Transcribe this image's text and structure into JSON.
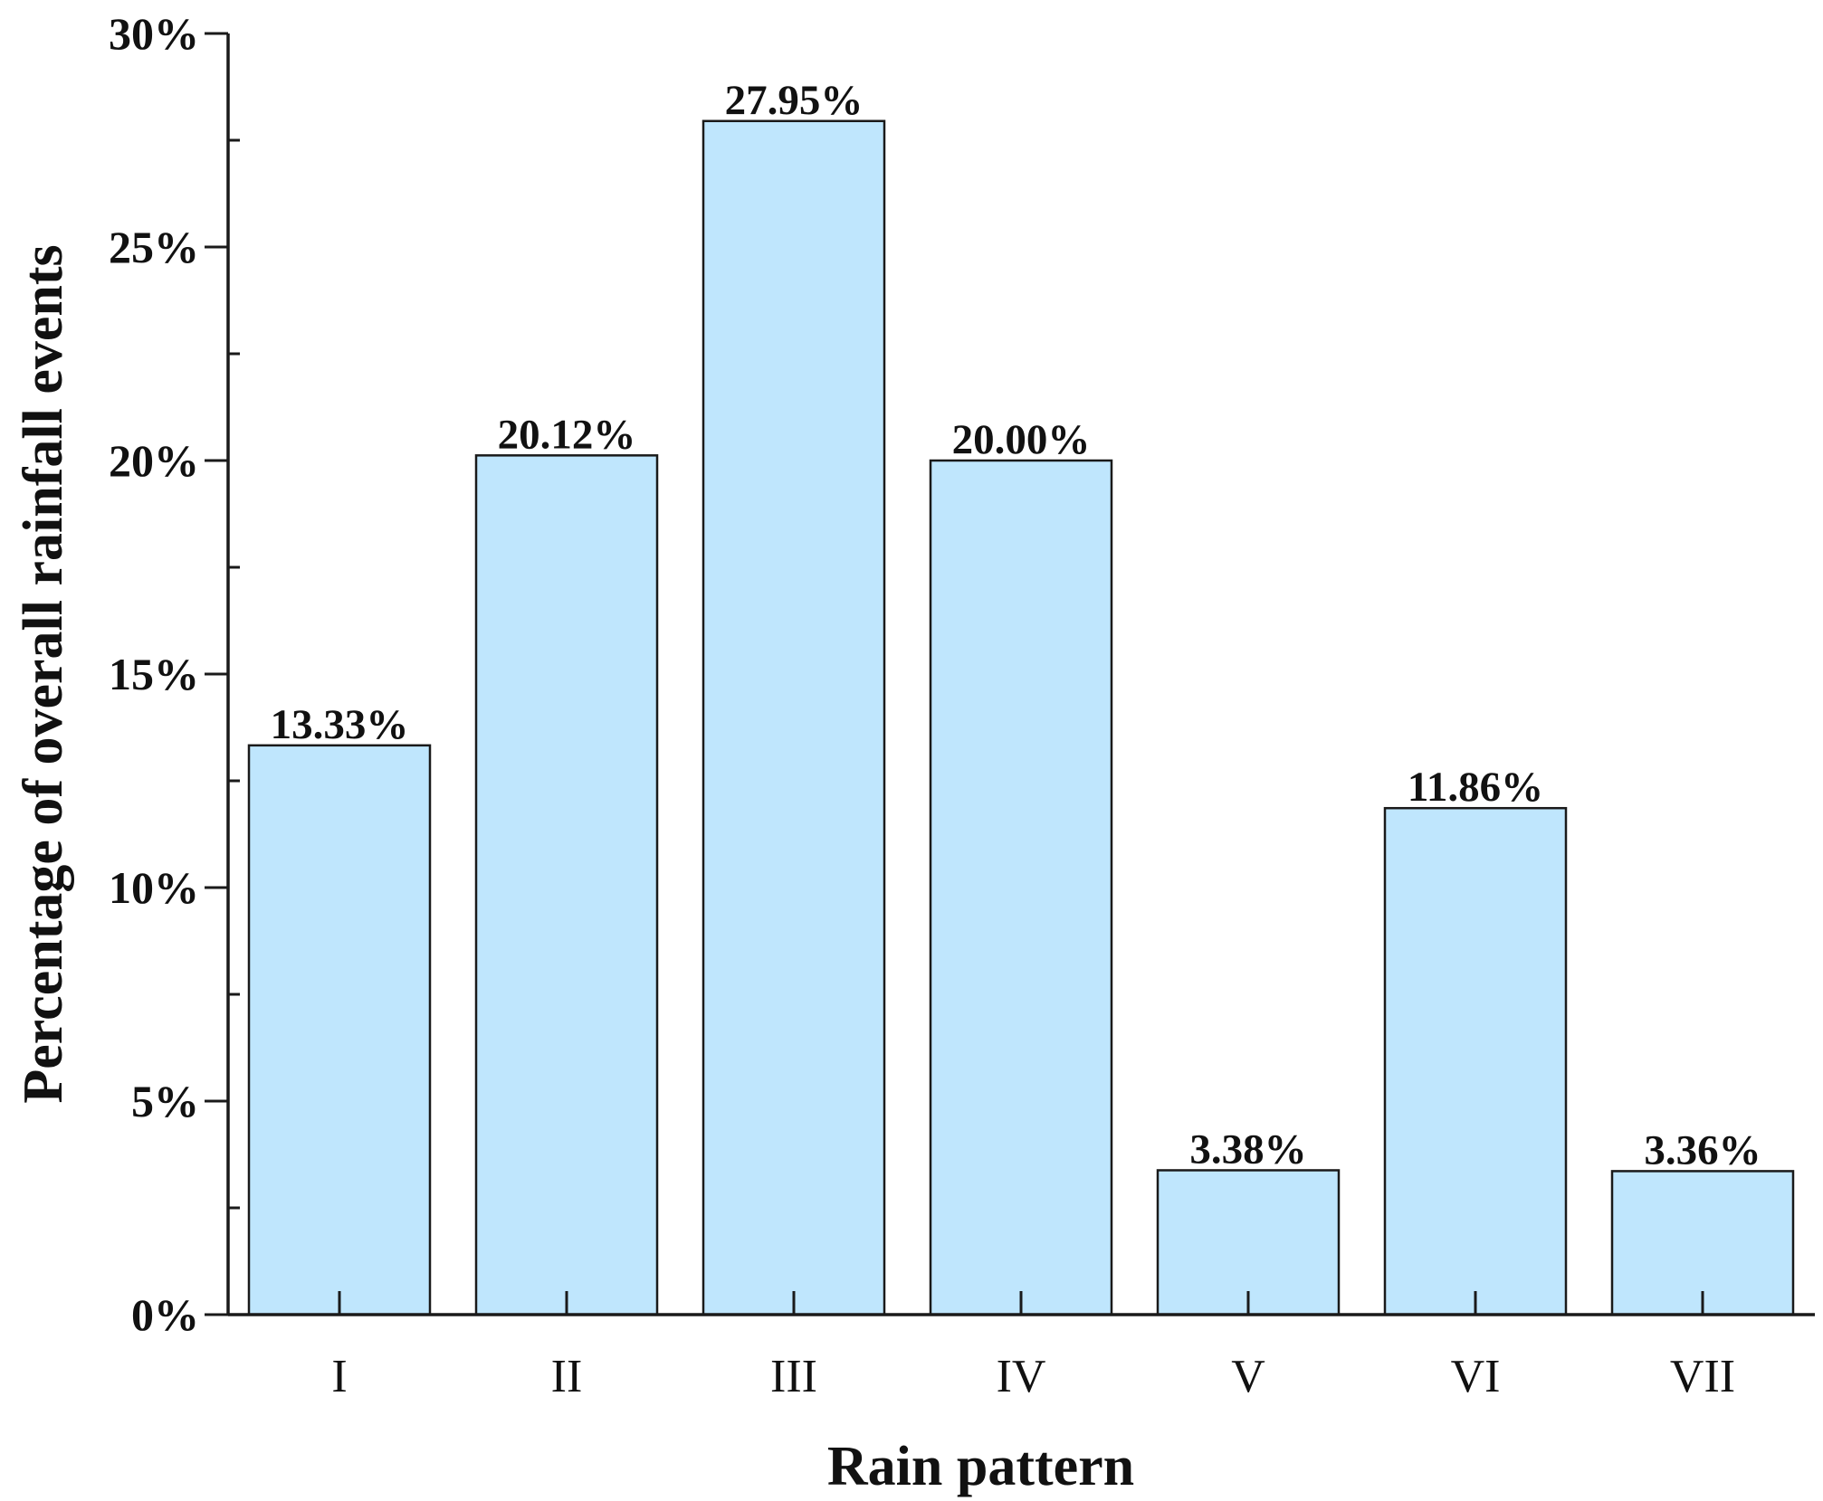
{
  "chart_data": {
    "type": "bar",
    "categories": [
      "I",
      "II",
      "III",
      "IV",
      "V",
      "VI",
      "VII"
    ],
    "values": [
      13.33,
      20.12,
      27.95,
      20.0,
      3.38,
      11.86,
      3.36
    ],
    "value_labels": [
      "13.33%",
      "20.12%",
      "27.95%",
      "20.00%",
      "3.38%",
      "11.86%",
      "3.36%"
    ],
    "title": "",
    "xlabel": "Rain pattern",
    "ylabel": "Percentage of overall rainfall events",
    "ylim": [
      0,
      30
    ],
    "yticks": [
      0,
      5,
      10,
      15,
      20,
      25,
      30
    ],
    "ytick_labels": [
      "0%",
      "5%",
      "10%",
      "15%",
      "20%",
      "25%",
      "30%"
    ],
    "bar_color": "#bfe6fd",
    "grid": false,
    "legend": "none"
  }
}
